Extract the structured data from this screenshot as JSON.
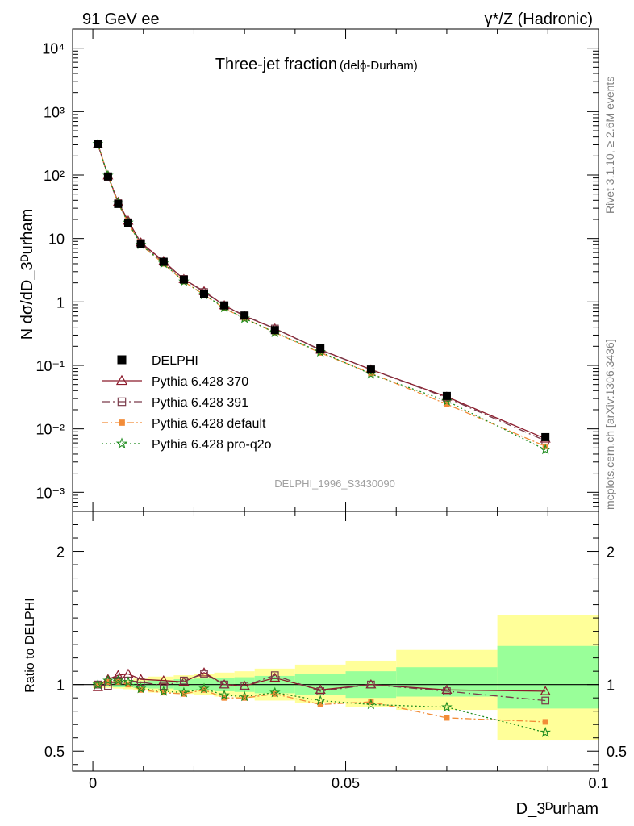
{
  "header": {
    "left": "91 GeV ee",
    "right": "γ*/Z (Hadronic)"
  },
  "side_labels": {
    "rivet": "Rivet 3.1.10, ≥ 2.6M events",
    "mcplots": "mcplots.cern.ch [arXiv:1306.3436]"
  },
  "watermark": "DELPHI_1996_S3430090",
  "chart_data": {
    "type": "line",
    "title_main": "Three-jet fraction",
    "title_sub": "(delϕ-Durham)",
    "xlabel": "D_3ᴰurham",
    "ylabel": "N dσ/dD_3ᴰurham",
    "ratio_ylabel": "Ratio to DELPHI",
    "xlim": [
      -0.004,
      0.1
    ],
    "ylim_main": [
      0.0005,
      20000
    ],
    "y_scale_main": "log",
    "ylim_ratio": [
      0.35,
      2.3
    ],
    "x_ticks": [
      "0",
      "0.05",
      "0.1"
    ],
    "y_ticks_main": [
      "10⁻³",
      "10⁻²",
      "10⁻¹",
      "1",
      "10",
      "10²",
      "10³",
      "10⁴"
    ],
    "y_ticks_ratio": [
      "0.5",
      "1",
      "2"
    ],
    "legend_position": "lower-left",
    "x": [
      0.001,
      0.003,
      0.005,
      0.007,
      0.0095,
      0.014,
      0.018,
      0.022,
      0.026,
      0.03,
      0.036,
      0.045,
      0.055,
      0.07,
      0.0895
    ],
    "bands": {
      "edges": [
        0,
        0.002,
        0.004,
        0.006,
        0.008,
        0.011,
        0.016,
        0.02,
        0.024,
        0.028,
        0.032,
        0.04,
        0.05,
        0.06,
        0.08,
        0.1
      ],
      "inner": [
        [
          0.985,
          1.015
        ],
        [
          0.985,
          1.015
        ],
        [
          0.98,
          1.02
        ],
        [
          0.98,
          1.02
        ],
        [
          0.975,
          1.025
        ],
        [
          0.97,
          1.03
        ],
        [
          0.96,
          1.04
        ],
        [
          0.955,
          1.045
        ],
        [
          0.95,
          1.05
        ],
        [
          0.945,
          1.055
        ],
        [
          0.935,
          1.065
        ],
        [
          0.92,
          1.08
        ],
        [
          0.9,
          1.1
        ],
        [
          0.91,
          1.13
        ],
        [
          0.82,
          1.29
        ]
      ],
      "outer": [
        [
          0.975,
          1.025
        ],
        [
          0.975,
          1.025
        ],
        [
          0.97,
          1.03
        ],
        [
          0.965,
          1.035
        ],
        [
          0.955,
          1.045
        ],
        [
          0.94,
          1.06
        ],
        [
          0.93,
          1.07
        ],
        [
          0.92,
          1.08
        ],
        [
          0.91,
          1.09
        ],
        [
          0.9,
          1.1
        ],
        [
          0.88,
          1.12
        ],
        [
          0.86,
          1.15
        ],
        [
          0.83,
          1.18
        ],
        [
          0.81,
          1.26
        ],
        [
          0.58,
          1.52
        ]
      ]
    },
    "series": [
      {
        "name": "DELPHI",
        "role": "data",
        "color": "#000000",
        "marker": "filled-square",
        "values": [
          310,
          95,
          35,
          17.5,
          8.3,
          4.3,
          2.25,
          1.35,
          0.88,
          0.61,
          0.36,
          0.185,
          0.086,
          0.033,
          0.0074
        ],
        "ratio": [
          1,
          1,
          1,
          1,
          1,
          1,
          1,
          1,
          1,
          1,
          1,
          1,
          1,
          1,
          1
        ]
      },
      {
        "name": "Pythia 6.428 370",
        "color": "#8b1a2b",
        "marker": "open-triangle",
        "dash": "",
        "values": [
          305,
          98,
          37.5,
          19,
          8.6,
          4.4,
          2.28,
          1.47,
          0.88,
          0.6,
          0.38,
          0.177,
          0.086,
          0.032,
          0.007
        ],
        "ratio": [
          0.98,
          1.04,
          1.07,
          1.08,
          1.04,
          1.03,
          1.02,
          1.09,
          1.0,
          0.99,
          1.05,
          0.96,
          1.0,
          0.96,
          0.95
        ]
      },
      {
        "name": "Pythia 6.428 391",
        "color": "#7a3b4a",
        "marker": "open-square",
        "dash": "10,4,2,4",
        "values": [
          310,
          94,
          36,
          18,
          8.5,
          4.2,
          2.3,
          1.43,
          0.88,
          0.61,
          0.38,
          0.175,
          0.086,
          0.031,
          0.0065
        ],
        "ratio": [
          1.0,
          0.99,
          1.03,
          1.03,
          1.02,
          0.99,
          1.03,
          1.08,
          1.0,
          0.99,
          1.07,
          0.95,
          1.0,
          0.95,
          0.88
        ]
      },
      {
        "name": "Pythia 6.428 default",
        "color": "#f28c38",
        "marker": "filled-square-small",
        "dash": "8,3,2,3",
        "values": [
          310,
          97,
          36,
          17.5,
          8.0,
          4.0,
          2.1,
          1.3,
          0.79,
          0.55,
          0.33,
          0.158,
          0.075,
          0.0245,
          0.0053
        ],
        "ratio": [
          1.0,
          1.02,
          1.02,
          1.0,
          0.96,
          0.94,
          0.93,
          0.96,
          0.9,
          0.9,
          0.93,
          0.85,
          0.87,
          0.75,
          0.72
        ]
      },
      {
        "name": "Pythia 6.428 pro-q2o",
        "color": "#1e8c1e",
        "marker": "star",
        "dash": "2,3",
        "values": [
          310,
          98,
          36,
          17.8,
          8.0,
          4.05,
          2.1,
          1.3,
          0.81,
          0.55,
          0.33,
          0.163,
          0.073,
          0.0275,
          0.0047
        ],
        "ratio": [
          1.0,
          1.03,
          1.03,
          1.02,
          0.97,
          0.95,
          0.94,
          0.97,
          0.92,
          0.91,
          0.94,
          0.88,
          0.85,
          0.83,
          0.64
        ]
      }
    ]
  }
}
